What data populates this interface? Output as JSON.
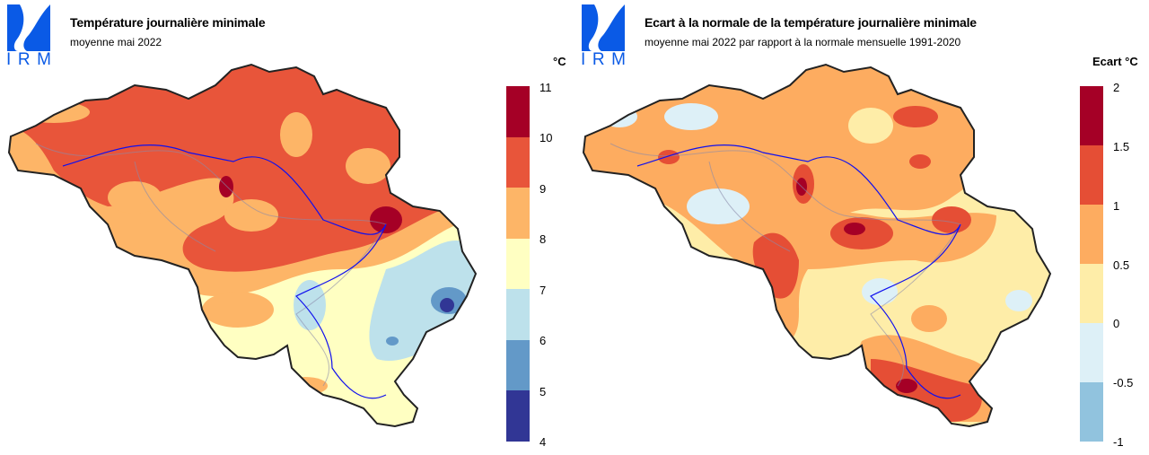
{
  "logo_text": "IRM",
  "maps": [
    {
      "title": "Température journalière minimale",
      "subtitle": "moyenne mai 2022",
      "unit": "°C",
      "legend_labels": [
        "11",
        "10",
        "9",
        "8",
        "7",
        "6",
        "5",
        "4"
      ],
      "legend_colors": [
        "#a50026",
        "#e8553a",
        "#fdb567",
        "#ffffc2",
        "#bde1eb",
        "#6399c8",
        "#313695"
      ]
    },
    {
      "title": "Ecart à la normale de la température journalière minimale",
      "subtitle": "moyenne mai 2022 par rapport à la normale mensuelle 1991-2020",
      "unit": "Ecart °C",
      "legend_labels": [
        "2",
        "1.5",
        "1",
        "0.5",
        "0",
        "-0.5",
        "-1"
      ],
      "legend_colors": [
        "#a50026",
        "#e54e35",
        "#fdac60",
        "#feeda8",
        "#ddf0f7",
        "#91c3de"
      ]
    }
  ]
}
